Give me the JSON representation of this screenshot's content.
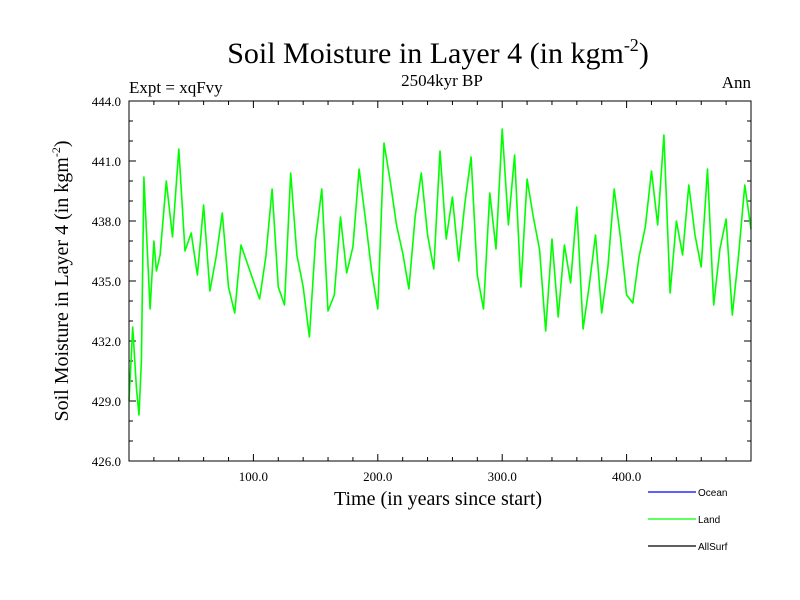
{
  "chart_data": {
    "type": "line",
    "title": "Soil Moisture in Layer 4 (in kgm",
    "title_sup": "-2",
    "title_end": ")",
    "left_label": "Expt = xqFvy",
    "center_label": "2504kyr BP",
    "right_label": "Ann",
    "xlabel": "Time (in years since start)",
    "ylabel": "Soil Moisture in Layer 4 (in kgm",
    "ylabel_sup": "-2",
    "ylabel_end": ")",
    "xlim": [
      0,
      500
    ],
    "ylim": [
      426,
      444
    ],
    "x_ticks": [
      100,
      200,
      300,
      400
    ],
    "x_tick_labels": [
      "100.0",
      "200.0",
      "300.0",
      "400.0"
    ],
    "y_ticks": [
      426,
      429,
      432,
      435,
      438,
      441,
      444
    ],
    "y_tick_labels": [
      "426.0",
      "429.0",
      "432.0",
      "435.0",
      "438.0",
      "441.0",
      "444.0"
    ],
    "legend_position": "bottom-right",
    "series": [
      {
        "name": "Ocean",
        "color": "#0000ff",
        "x": [],
        "values": []
      },
      {
        "name": "Land",
        "color": "#00ff00",
        "x": [
          0,
          3,
          6,
          8,
          10,
          12,
          14,
          17,
          20,
          22,
          25,
          30,
          35,
          40,
          45,
          50,
          55,
          60,
          65,
          70,
          75,
          80,
          85,
          90,
          95,
          100,
          105,
          110,
          115,
          120,
          125,
          130,
          135,
          140,
          145,
          150,
          155,
          160,
          165,
          170,
          175,
          180,
          185,
          190,
          195,
          200,
          205,
          210,
          215,
          220,
          225,
          230,
          235,
          240,
          245,
          250,
          255,
          260,
          265,
          270,
          275,
          280,
          285,
          290,
          295,
          300,
          305,
          310,
          315,
          320,
          325,
          330,
          335,
          340,
          345,
          350,
          355,
          360,
          365,
          370,
          375,
          380,
          385,
          390,
          395,
          400,
          405,
          410,
          415,
          420,
          425,
          430,
          435,
          440,
          445,
          450,
          455,
          460,
          465,
          470,
          475,
          480,
          485,
          490,
          495,
          500
        ],
        "values": [
          429.0,
          432.7,
          429.6,
          428.3,
          431.0,
          440.2,
          437.5,
          433.6,
          437.0,
          435.5,
          436.3,
          440.0,
          437.2,
          441.6,
          436.5,
          437.4,
          435.3,
          438.8,
          434.5,
          436.2,
          438.4,
          434.7,
          433.4,
          436.8,
          435.9,
          435.0,
          434.1,
          436.2,
          439.6,
          434.7,
          433.8,
          440.4,
          436.3,
          434.7,
          432.2,
          437.1,
          439.6,
          433.5,
          434.3,
          438.2,
          435.4,
          436.7,
          440.6,
          438.1,
          435.5,
          433.6,
          441.9,
          440.0,
          437.8,
          436.4,
          434.6,
          438.2,
          440.4,
          437.3,
          435.6,
          441.5,
          437.1,
          439.2,
          436.0,
          438.9,
          441.2,
          435.3,
          433.6,
          439.4,
          436.6,
          442.6,
          437.8,
          441.3,
          434.7,
          440.1,
          438.2,
          436.6,
          432.5,
          437.1,
          433.2,
          436.8,
          434.9,
          438.7,
          432.6,
          434.8,
          437.3,
          433.4,
          435.7,
          439.6,
          437.2,
          434.3,
          433.9,
          436.2,
          437.7,
          440.5,
          437.8,
          442.3,
          434.4,
          438.0,
          436.3,
          439.8,
          437.3,
          435.7,
          440.6,
          433.8,
          436.6,
          438.1,
          433.3,
          436.3,
          439.8,
          437.6
        ]
      },
      {
        "name": "AllSurf",
        "color": "#000000",
        "x": [],
        "values": []
      }
    ]
  }
}
